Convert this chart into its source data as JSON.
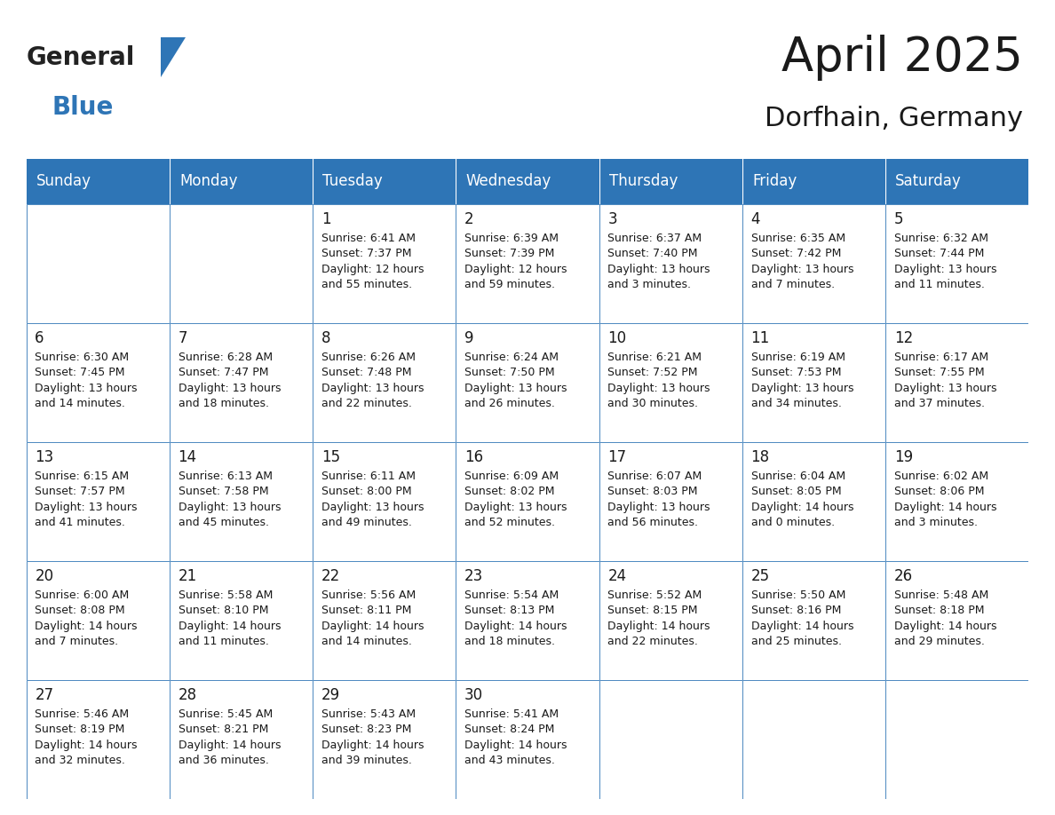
{
  "title": "April 2025",
  "subtitle": "Dorfhain, Germany",
  "header_bg": "#2E75B6",
  "header_text_color": "#FFFFFF",
  "cell_bg": "#F2F2F2",
  "border_color": "#2E75B6",
  "text_color": "#1a1a1a",
  "day_names": [
    "Sunday",
    "Monday",
    "Tuesday",
    "Wednesday",
    "Thursday",
    "Friday",
    "Saturday"
  ],
  "weeks": [
    [
      {
        "day": "",
        "info": ""
      },
      {
        "day": "",
        "info": ""
      },
      {
        "day": "1",
        "info": "Sunrise: 6:41 AM\nSunset: 7:37 PM\nDaylight: 12 hours\nand 55 minutes."
      },
      {
        "day": "2",
        "info": "Sunrise: 6:39 AM\nSunset: 7:39 PM\nDaylight: 12 hours\nand 59 minutes."
      },
      {
        "day": "3",
        "info": "Sunrise: 6:37 AM\nSunset: 7:40 PM\nDaylight: 13 hours\nand 3 minutes."
      },
      {
        "day": "4",
        "info": "Sunrise: 6:35 AM\nSunset: 7:42 PM\nDaylight: 13 hours\nand 7 minutes."
      },
      {
        "day": "5",
        "info": "Sunrise: 6:32 AM\nSunset: 7:44 PM\nDaylight: 13 hours\nand 11 minutes."
      }
    ],
    [
      {
        "day": "6",
        "info": "Sunrise: 6:30 AM\nSunset: 7:45 PM\nDaylight: 13 hours\nand 14 minutes."
      },
      {
        "day": "7",
        "info": "Sunrise: 6:28 AM\nSunset: 7:47 PM\nDaylight: 13 hours\nand 18 minutes."
      },
      {
        "day": "8",
        "info": "Sunrise: 6:26 AM\nSunset: 7:48 PM\nDaylight: 13 hours\nand 22 minutes."
      },
      {
        "day": "9",
        "info": "Sunrise: 6:24 AM\nSunset: 7:50 PM\nDaylight: 13 hours\nand 26 minutes."
      },
      {
        "day": "10",
        "info": "Sunrise: 6:21 AM\nSunset: 7:52 PM\nDaylight: 13 hours\nand 30 minutes."
      },
      {
        "day": "11",
        "info": "Sunrise: 6:19 AM\nSunset: 7:53 PM\nDaylight: 13 hours\nand 34 minutes."
      },
      {
        "day": "12",
        "info": "Sunrise: 6:17 AM\nSunset: 7:55 PM\nDaylight: 13 hours\nand 37 minutes."
      }
    ],
    [
      {
        "day": "13",
        "info": "Sunrise: 6:15 AM\nSunset: 7:57 PM\nDaylight: 13 hours\nand 41 minutes."
      },
      {
        "day": "14",
        "info": "Sunrise: 6:13 AM\nSunset: 7:58 PM\nDaylight: 13 hours\nand 45 minutes."
      },
      {
        "day": "15",
        "info": "Sunrise: 6:11 AM\nSunset: 8:00 PM\nDaylight: 13 hours\nand 49 minutes."
      },
      {
        "day": "16",
        "info": "Sunrise: 6:09 AM\nSunset: 8:02 PM\nDaylight: 13 hours\nand 52 minutes."
      },
      {
        "day": "17",
        "info": "Sunrise: 6:07 AM\nSunset: 8:03 PM\nDaylight: 13 hours\nand 56 minutes."
      },
      {
        "day": "18",
        "info": "Sunrise: 6:04 AM\nSunset: 8:05 PM\nDaylight: 14 hours\nand 0 minutes."
      },
      {
        "day": "19",
        "info": "Sunrise: 6:02 AM\nSunset: 8:06 PM\nDaylight: 14 hours\nand 3 minutes."
      }
    ],
    [
      {
        "day": "20",
        "info": "Sunrise: 6:00 AM\nSunset: 8:08 PM\nDaylight: 14 hours\nand 7 minutes."
      },
      {
        "day": "21",
        "info": "Sunrise: 5:58 AM\nSunset: 8:10 PM\nDaylight: 14 hours\nand 11 minutes."
      },
      {
        "day": "22",
        "info": "Sunrise: 5:56 AM\nSunset: 8:11 PM\nDaylight: 14 hours\nand 14 minutes."
      },
      {
        "day": "23",
        "info": "Sunrise: 5:54 AM\nSunset: 8:13 PM\nDaylight: 14 hours\nand 18 minutes."
      },
      {
        "day": "24",
        "info": "Sunrise: 5:52 AM\nSunset: 8:15 PM\nDaylight: 14 hours\nand 22 minutes."
      },
      {
        "day": "25",
        "info": "Sunrise: 5:50 AM\nSunset: 8:16 PM\nDaylight: 14 hours\nand 25 minutes."
      },
      {
        "day": "26",
        "info": "Sunrise: 5:48 AM\nSunset: 8:18 PM\nDaylight: 14 hours\nand 29 minutes."
      }
    ],
    [
      {
        "day": "27",
        "info": "Sunrise: 5:46 AM\nSunset: 8:19 PM\nDaylight: 14 hours\nand 32 minutes."
      },
      {
        "day": "28",
        "info": "Sunrise: 5:45 AM\nSunset: 8:21 PM\nDaylight: 14 hours\nand 36 minutes."
      },
      {
        "day": "29",
        "info": "Sunrise: 5:43 AM\nSunset: 8:23 PM\nDaylight: 14 hours\nand 39 minutes."
      },
      {
        "day": "30",
        "info": "Sunrise: 5:41 AM\nSunset: 8:24 PM\nDaylight: 14 hours\nand 43 minutes."
      },
      {
        "day": "",
        "info": ""
      },
      {
        "day": "",
        "info": ""
      },
      {
        "day": "",
        "info": ""
      }
    ]
  ],
  "logo_general_color": "#222222",
  "logo_blue_color": "#2E75B6",
  "title_fontsize": 38,
  "subtitle_fontsize": 22,
  "day_name_fontsize": 12,
  "day_num_fontsize": 12,
  "info_fontsize": 9
}
